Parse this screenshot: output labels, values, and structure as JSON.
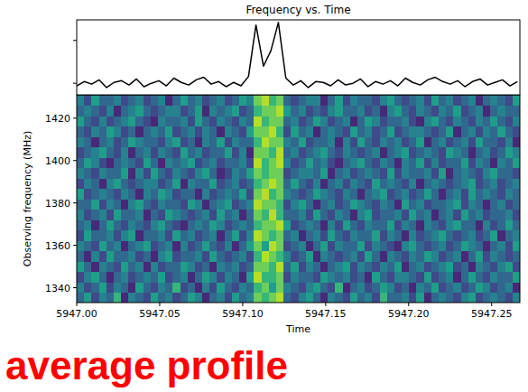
{
  "chart_data": [
    {
      "type": "line",
      "title": "Frequency vs. Time",
      "annotation": "average profile",
      "color": "#000000",
      "tick_labels": false,
      "xlim": [
        5947.0,
        5947.267
      ],
      "ylim": [
        -1.35,
        7.4
      ],
      "yticks": [
        0,
        5
      ],
      "x": [
        5947.0,
        5947.0045,
        5947.009,
        5947.0135,
        5947.018,
        5947.0225,
        5947.027,
        5947.0315,
        5947.036,
        5947.0405,
        5947.045,
        5947.0495,
        5947.054,
        5947.0585,
        5947.063,
        5947.0675,
        5947.072,
        5947.0765,
        5947.081,
        5947.0855,
        5947.09,
        5947.0945,
        5947.099,
        5947.1035,
        5947.108,
        5947.1125,
        5947.117,
        5947.1215,
        5947.126,
        5947.1305,
        5947.135,
        5947.1395,
        5947.144,
        5947.1485,
        5947.153,
        5947.1575,
        5947.162,
        5947.1665,
        5947.171,
        5947.1755,
        5947.18,
        5947.1845,
        5947.189,
        5947.1935,
        5947.198,
        5947.2025,
        5947.207,
        5947.2115,
        5947.216,
        5947.2205,
        5947.225,
        5947.2295,
        5947.234,
        5947.2385,
        5947.243,
        5947.2475,
        5947.252,
        5947.2565,
        5947.261,
        5947.2655
      ],
      "values": [
        -0.3,
        0.2,
        -0.1,
        0.4,
        -0.5,
        0.1,
        0.3,
        -0.2,
        0.5,
        -0.4,
        0.0,
        0.3,
        -0.3,
        0.6,
        0.1,
        -0.2,
        0.4,
        0.7,
        -0.1,
        0.2,
        -0.4,
        0.1,
        -0.3,
        0.8,
        6.8,
        2.0,
        3.8,
        7.1,
        0.6,
        -0.2,
        0.3,
        -0.5,
        0.2,
        0.1,
        -0.3,
        0.4,
        -0.2,
        0.0,
        0.5,
        -0.4,
        0.2,
        -0.1,
        0.3,
        -0.3,
        0.6,
        0.1,
        -0.2,
        0.4,
        0.7,
        0.2,
        -0.1,
        0.3,
        -0.4,
        0.2,
        0.5,
        -0.2,
        0.1,
        0.4,
        -0.3,
        0.2
      ]
    },
    {
      "type": "heatmap",
      "x_label": "Time",
      "y_label": "Observing frequency (MHz)",
      "xlim": [
        5947.0,
        5947.267
      ],
      "ylim": [
        1333,
        1431
      ],
      "xticks": [
        {
          "value": 5947.0,
          "label": "5947.00"
        },
        {
          "value": 5947.05,
          "label": "5947.05"
        },
        {
          "value": 5947.1,
          "label": "5947.10"
        },
        {
          "value": 5947.15,
          "label": "5947.15"
        },
        {
          "value": 5947.2,
          "label": "5947.20"
        },
        {
          "value": 5947.25,
          "label": "5947.25"
        }
      ],
      "yticks": [
        1340,
        1360,
        1380,
        1400,
        1420
      ],
      "color_range": [
        0,
        9
      ],
      "cells": [
        [
          3,
          5,
          2,
          4,
          3,
          6,
          1,
          4,
          3,
          2,
          5,
          3,
          4,
          2,
          3,
          5,
          4,
          1,
          3,
          4,
          2,
          5,
          3,
          4,
          7,
          6,
          7,
          8,
          3,
          2,
          4,
          5,
          3,
          1,
          4,
          3,
          2,
          5,
          3,
          4,
          2,
          6,
          3,
          3,
          4,
          2,
          5,
          1,
          3,
          4,
          3,
          2,
          4,
          5,
          2,
          3,
          4,
          3,
          2,
          4
        ],
        [
          4,
          2,
          3,
          5,
          2,
          4,
          3,
          1,
          5,
          3,
          2,
          4,
          3,
          6,
          2,
          3,
          1,
          4,
          2,
          5,
          3,
          2,
          4,
          3,
          6,
          7,
          5,
          7,
          4,
          3,
          2,
          4,
          5,
          3,
          2,
          6,
          1,
          3,
          4,
          2,
          3,
          5,
          4,
          2,
          3,
          1,
          4,
          3,
          5,
          2,
          3,
          4,
          2,
          3,
          5,
          4,
          2,
          3,
          4,
          1
        ],
        [
          2,
          4,
          5,
          3,
          1,
          3,
          4,
          2,
          3,
          4,
          3,
          5,
          2,
          3,
          4,
          1,
          3,
          5,
          4,
          2,
          4,
          3,
          1,
          5,
          8,
          6,
          6,
          7,
          2,
          4,
          3,
          3,
          2,
          5,
          4,
          3,
          4,
          2,
          3,
          1,
          5,
          3,
          2,
          4,
          4,
          3,
          2,
          5,
          2,
          3,
          4,
          1,
          3,
          5,
          3,
          2,
          4,
          3,
          3,
          5
        ],
        [
          5,
          3,
          1,
          4,
          3,
          2,
          5,
          3,
          4,
          1,
          4,
          2,
          3,
          3,
          5,
          4,
          2,
          3,
          1,
          4,
          3,
          4,
          2,
          3,
          7,
          7,
          6,
          8,
          3,
          5,
          2,
          4,
          3,
          1,
          3,
          4,
          5,
          2,
          4,
          3,
          2,
          4,
          3,
          5,
          1,
          3,
          4,
          2,
          3,
          4,
          5,
          2,
          3,
          1,
          4,
          3,
          2,
          4,
          5,
          2
        ],
        [
          3,
          1,
          4,
          2,
          5,
          3,
          3,
          4,
          2,
          3,
          1,
          4,
          5,
          2,
          3,
          3,
          4,
          2,
          5,
          3,
          2,
          3,
          4,
          2,
          6,
          8,
          7,
          6,
          4,
          2,
          3,
          5,
          1,
          4,
          3,
          2,
          3,
          4,
          2,
          5,
          3,
          1,
          4,
          3,
          2,
          4,
          3,
          5,
          4,
          2,
          3,
          4,
          1,
          3,
          5,
          2,
          4,
          3,
          2,
          3
        ],
        [
          4,
          3,
          2,
          5,
          3,
          4,
          1,
          3,
          4,
          5,
          2,
          3,
          4,
          1,
          4,
          2,
          3,
          5,
          3,
          2,
          4,
          1,
          3,
          5,
          7,
          5,
          8,
          7,
          2,
          3,
          4,
          1,
          3,
          5,
          2,
          4,
          3,
          3,
          5,
          2,
          4,
          3,
          2,
          1,
          4,
          5,
          3,
          2,
          3,
          4,
          2,
          3,
          5,
          4,
          3,
          1,
          3,
          4,
          2,
          5
        ],
        [
          2,
          5,
          3,
          3,
          4,
          2,
          4,
          5,
          1,
          3,
          3,
          4,
          2,
          5,
          3,
          4,
          2,
          3,
          4,
          1,
          3,
          5,
          2,
          4,
          8,
          7,
          6,
          7,
          3,
          4,
          1,
          3,
          4,
          2,
          5,
          3,
          2,
          4,
          3,
          3,
          5,
          2,
          4,
          3,
          1,
          4,
          2,
          3,
          4,
          5,
          3,
          2,
          3,
          4,
          2,
          3,
          5,
          1,
          3,
          4
        ],
        [
          3,
          4,
          1,
          3,
          5,
          3,
          2,
          4,
          3,
          2,
          4,
          5,
          3,
          2,
          1,
          3,
          4,
          3,
          5,
          4,
          2,
          3,
          4,
          3,
          6,
          7,
          7,
          8,
          5,
          2,
          3,
          4,
          3,
          1,
          4,
          2,
          5,
          3,
          2,
          4,
          3,
          3,
          5,
          2,
          4,
          3,
          1,
          4,
          3,
          2,
          4,
          5,
          3,
          3,
          1,
          4,
          2,
          3,
          5,
          3
        ],
        [
          4,
          2,
          3,
          4,
          2,
          5,
          3,
          3,
          4,
          1,
          3,
          2,
          5,
          4,
          3,
          2,
          3,
          4,
          2,
          5,
          3,
          4,
          1,
          3,
          7,
          6,
          8,
          6,
          3,
          3,
          4,
          2,
          5,
          3,
          2,
          4,
          3,
          1,
          4,
          5,
          2,
          3,
          3,
          4,
          2,
          5,
          3,
          4,
          1,
          3,
          4,
          2,
          5,
          3,
          4,
          2,
          3,
          3,
          4,
          2
        ],
        [
          3,
          3,
          5,
          2,
          4,
          3,
          1,
          4,
          5,
          3,
          2,
          4,
          3,
          3,
          2,
          5,
          4,
          1,
          3,
          4,
          5,
          2,
          3,
          4,
          8,
          7,
          7,
          6,
          2,
          4,
          5,
          3,
          1,
          3,
          4,
          2,
          3,
          5,
          4,
          3,
          2,
          4,
          3,
          1,
          5,
          3,
          4,
          2,
          3,
          3,
          4,
          5,
          2,
          4,
          3,
          1,
          3,
          4,
          2,
          3
        ],
        [
          5,
          2,
          3,
          4,
          3,
          2,
          4,
          3,
          1,
          4,
          3,
          5,
          4,
          2,
          3,
          3,
          1,
          4,
          2,
          3,
          4,
          3,
          5,
          2,
          7,
          8,
          6,
          7,
          4,
          3,
          2,
          3,
          5,
          4,
          3,
          2,
          4,
          3,
          1,
          3,
          4,
          5,
          2,
          3,
          4,
          2,
          3,
          5,
          3,
          1,
          3,
          4,
          2,
          5,
          3,
          4,
          3,
          2,
          4,
          3
        ],
        [
          2,
          4,
          3,
          1,
          4,
          5,
          3,
          2,
          3,
          4,
          4,
          2,
          3,
          5,
          1,
          4,
          3,
          3,
          5,
          2,
          3,
          4,
          2,
          3,
          6,
          7,
          8,
          7,
          3,
          5,
          3,
          2,
          4,
          1,
          3,
          4,
          2,
          4,
          3,
          2,
          5,
          3,
          4,
          3,
          2,
          4,
          1,
          3,
          4,
          3,
          2,
          3,
          4,
          5,
          2,
          3,
          4,
          2,
          3,
          4
        ],
        [
          4,
          3,
          2,
          4,
          3,
          3,
          5,
          1,
          4,
          2,
          5,
          3,
          2,
          4,
          3,
          2,
          4,
          5,
          3,
          1,
          2,
          4,
          3,
          5,
          7,
          6,
          7,
          7,
          2,
          3,
          4,
          4,
          3,
          5,
          1,
          3,
          4,
          2,
          3,
          4,
          3,
          2,
          5,
          2,
          4,
          3,
          3,
          4,
          2,
          5,
          1,
          3,
          4,
          3,
          2,
          4,
          5,
          3,
          3,
          2
        ],
        [
          3,
          5,
          4,
          2,
          1,
          3,
          4,
          3,
          2,
          5,
          3,
          1,
          4,
          3,
          4,
          5,
          2,
          3,
          4,
          2,
          3,
          3,
          4,
          2,
          8,
          6,
          7,
          8,
          4,
          2,
          3,
          5,
          3,
          4,
          2,
          1,
          3,
          4,
          5,
          3,
          2,
          4,
          3,
          1,
          4,
          3,
          5,
          2,
          4,
          2,
          3,
          3,
          5,
          2,
          4,
          3,
          1,
          4,
          3,
          5
        ],
        [
          2,
          3,
          4,
          5,
          3,
          2,
          4,
          1,
          3,
          4,
          2,
          4,
          3,
          2,
          5,
          3,
          4,
          2,
          3,
          3,
          5,
          2,
          4,
          1,
          7,
          7,
          6,
          8,
          3,
          4,
          2,
          3,
          4,
          5,
          3,
          2,
          4,
          3,
          2,
          3,
          4,
          1,
          3,
          4,
          5,
          2,
          3,
          4,
          3,
          2,
          5,
          4,
          3,
          1,
          3,
          4,
          2,
          3,
          5,
          4
        ],
        [
          4,
          3,
          1,
          3,
          4,
          2,
          3,
          5,
          4,
          3,
          3,
          2,
          4,
          5,
          2,
          3,
          1,
          4,
          3,
          5,
          2,
          4,
          3,
          3,
          6,
          8,
          7,
          7,
          4,
          3,
          5,
          2,
          3,
          3,
          4,
          1,
          4,
          2,
          5,
          3,
          2,
          4,
          3,
          4,
          2,
          3,
          5,
          1,
          3,
          4,
          2,
          3,
          4,
          2,
          5,
          3,
          3,
          2,
          4,
          1
        ],
        [
          3,
          2,
          4,
          3,
          5,
          4,
          2,
          3,
          1,
          3,
          4,
          3,
          5,
          2,
          3,
          4,
          2,
          4,
          3,
          1,
          4,
          3,
          2,
          5,
          7,
          7,
          8,
          6,
          2,
          5,
          3,
          4,
          1,
          3,
          4,
          3,
          2,
          5,
          3,
          4,
          2,
          3,
          5,
          2,
          3,
          4,
          4,
          3,
          2,
          3,
          5,
          1,
          3,
          4,
          2,
          4,
          3,
          5,
          3,
          2
        ],
        [
          5,
          3,
          2,
          4,
          2,
          3,
          4,
          5,
          3,
          2,
          1,
          4,
          3,
          3,
          4,
          2,
          5,
          3,
          2,
          4,
          3,
          2,
          4,
          3,
          8,
          6,
          7,
          7,
          3,
          4,
          2,
          3,
          5,
          4,
          2,
          3,
          4,
          1,
          3,
          5,
          4,
          2,
          3,
          3,
          4,
          2,
          1,
          4,
          5,
          3,
          2,
          4,
          3,
          2,
          4,
          3,
          5,
          3,
          2,
          4
        ],
        [
          3,
          4,
          3,
          2,
          4,
          1,
          3,
          4,
          5,
          3,
          2,
          3,
          4,
          4,
          2,
          3,
          5,
          1,
          4,
          3,
          4,
          5,
          2,
          3,
          6,
          7,
          7,
          8,
          5,
          3,
          4,
          2,
          3,
          2,
          4,
          5,
          3,
          3,
          4,
          2,
          3,
          1,
          4,
          5,
          3,
          2,
          4,
          3,
          2,
          4,
          3,
          5,
          2,
          3,
          4,
          1,
          3,
          4,
          3,
          3
        ],
        [
          4,
          2,
          5,
          3,
          3,
          4,
          2,
          3,
          4,
          2,
          3,
          4,
          1,
          3,
          5,
          3,
          4,
          2,
          3,
          4,
          2,
          3,
          5,
          4,
          7,
          8,
          6,
          7,
          3,
          2,
          3,
          4,
          4,
          1,
          3,
          5,
          2,
          4,
          3,
          3,
          2,
          4,
          5,
          3,
          2,
          3,
          4,
          2,
          5,
          3,
          4,
          2,
          3,
          4,
          1,
          3,
          4,
          3,
          2,
          5
        ]
      ]
    }
  ]
}
